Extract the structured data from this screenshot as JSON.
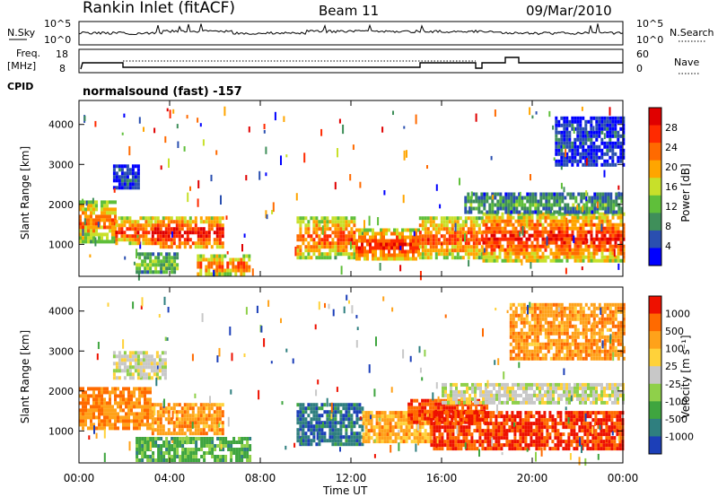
{
  "header": {
    "station": "Rankin Inlet (fitACF)",
    "beam": "Beam 11",
    "date": "09/Mar/2010"
  },
  "noise_panel": {
    "left_label": "N.Sky",
    "right_label": "N.Search",
    "left_ticks": [
      "10^5",
      "10^0"
    ],
    "right_ticks": [
      "10^5",
      "10^0"
    ]
  },
  "freq_panel": {
    "left_label_line1": "Freq.",
    "left_label_line2": "[MHz]",
    "right_label": "Nave",
    "left_ticks": [
      "18",
      "8"
    ],
    "right_ticks": [
      "60",
      "0"
    ]
  },
  "cpid": {
    "label": "CPID",
    "value": "normalsound (fast) -157"
  },
  "colors": {
    "power_scale": [
      "#0000ff",
      "#2a4fb0",
      "#3f8f5a",
      "#5fbf3a",
      "#c8e02a",
      "#ffa500",
      "#ff6a00",
      "#ff2a00",
      "#e00000"
    ],
    "velocity_scale": [
      "#1c3fb8",
      "#2f7f7f",
      "#3fa53f",
      "#8fd04a",
      "#c8c8c8",
      "#ffd23a",
      "#ffa21a",
      "#ff6a00",
      "#ee1100"
    ]
  },
  "chart_data": [
    {
      "type": "heatmap",
      "name": "power",
      "ylabel": "Slant Range [km]",
      "yticks": [
        "1000",
        "2000",
        "3000",
        "4000"
      ],
      "ylim": [
        200,
        4600
      ],
      "xlim": [
        0,
        24
      ],
      "colorbar_label": "Power [dB]",
      "colorbar_ticks": [
        "28",
        "24",
        "20",
        "16",
        "12",
        "8",
        "4"
      ],
      "bands": [
        {
          "t0": 0.0,
          "t1": 1.6,
          "r0": 1100,
          "r1": 2100,
          "level": 0.75
        },
        {
          "t0": 1.6,
          "t1": 3.2,
          "r0": 1000,
          "r1": 1700,
          "level": 0.85
        },
        {
          "t0": 3.2,
          "t1": 6.4,
          "r0": 900,
          "r1": 1700,
          "level": 0.95
        },
        {
          "t0": 2.5,
          "t1": 4.3,
          "r0": 300,
          "r1": 800,
          "level": 0.45
        },
        {
          "t0": 5.2,
          "t1": 7.5,
          "r0": 250,
          "r1": 750,
          "level": 0.8
        },
        {
          "t0": 1.5,
          "t1": 2.6,
          "r0": 2400,
          "r1": 3000,
          "level": 0.15
        },
        {
          "t0": 9.6,
          "t1": 12.2,
          "r0": 700,
          "r1": 1700,
          "level": 0.8
        },
        {
          "t0": 12.2,
          "t1": 15.0,
          "r0": 600,
          "r1": 1400,
          "level": 0.9
        },
        {
          "t0": 15.0,
          "t1": 17.8,
          "r0": 700,
          "r1": 1700,
          "level": 0.8
        },
        {
          "t0": 17.8,
          "t1": 24.0,
          "r0": 600,
          "r1": 1800,
          "level": 0.9
        },
        {
          "t0": 17.0,
          "t1": 24.0,
          "r0": 1800,
          "r1": 2300,
          "level": 0.35
        },
        {
          "t0": 21.0,
          "t1": 24.0,
          "r0": 3000,
          "r1": 4200,
          "level": 0.15
        }
      ]
    },
    {
      "type": "heatmap",
      "name": "velocity",
      "ylabel": "Slant Range [km]",
      "yticks": [
        "1000",
        "2000",
        "3000",
        "4000"
      ],
      "ylim": [
        200,
        4600
      ],
      "xlim": [
        0,
        24
      ],
      "colorbar_label": "Velocity [m s⁻¹]",
      "colorbar_ticks": [
        "1000",
        "500",
        "100",
        "25",
        "-25",
        "-100",
        "-500",
        "-1000"
      ],
      "bands": [
        {
          "t0": 0.0,
          "t1": 3.2,
          "r0": 1100,
          "r1": 2100,
          "level": 0.78
        },
        {
          "t0": 3.2,
          "t1": 6.4,
          "r0": 900,
          "r1": 1700,
          "level": 0.72
        },
        {
          "t0": 2.5,
          "t1": 7.5,
          "r0": 250,
          "r1": 850,
          "level": 0.3
        },
        {
          "t0": 1.5,
          "t1": 3.8,
          "r0": 2300,
          "r1": 3000,
          "level": 0.5
        },
        {
          "t0": 9.6,
          "t1": 12.5,
          "r0": 700,
          "r1": 1700,
          "level": 0.15
        },
        {
          "t0": 12.5,
          "t1": 15.5,
          "r0": 700,
          "r1": 1500,
          "level": 0.7
        },
        {
          "t0": 14.5,
          "t1": 18.0,
          "r0": 1200,
          "r1": 1800,
          "level": 0.88
        },
        {
          "t0": 15.5,
          "t1": 24.0,
          "r0": 600,
          "r1": 1500,
          "level": 0.9
        },
        {
          "t0": 16.0,
          "t1": 24.0,
          "r0": 1700,
          "r1": 2200,
          "level": 0.5
        },
        {
          "t0": 19.0,
          "t1": 24.0,
          "r0": 2800,
          "r1": 4200,
          "level": 0.75
        }
      ]
    }
  ],
  "xaxis": {
    "ticks": [
      "00:00",
      "04:00",
      "08:00",
      "12:00",
      "16:00",
      "20:00",
      "00:00"
    ],
    "label": "Time UT"
  }
}
